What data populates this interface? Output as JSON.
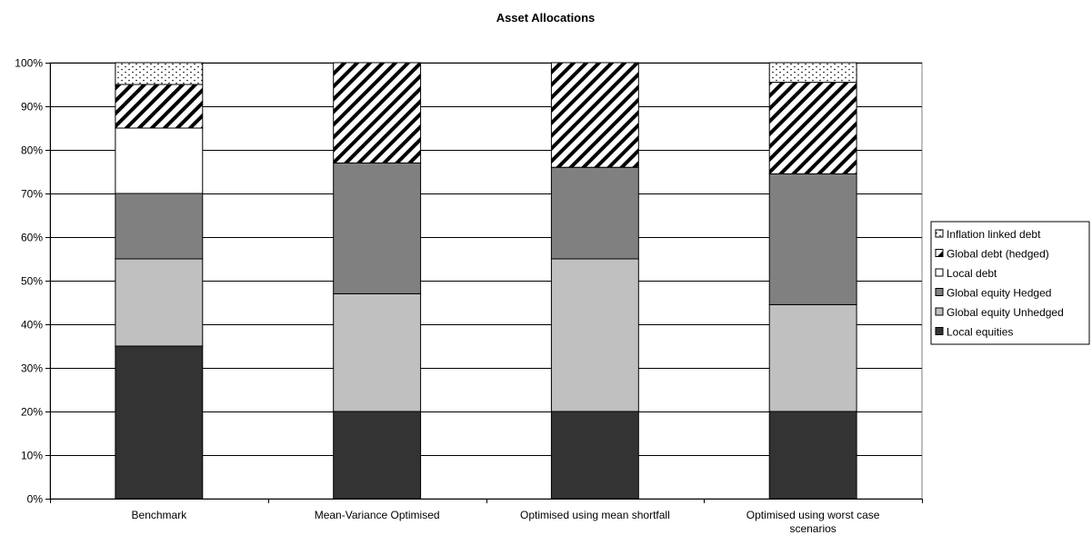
{
  "chart_data": {
    "type": "bar",
    "stacked": true,
    "title": "Asset Allocations",
    "xlabel": "",
    "ylabel": "",
    "ylim": [
      0,
      100
    ],
    "y_ticks": [
      "0%",
      "10%",
      "20%",
      "30%",
      "40%",
      "50%",
      "60%",
      "70%",
      "80%",
      "90%",
      "100%"
    ],
    "grid": "horizontal major gridlines",
    "legend_position": "right",
    "categories": [
      [
        "Benchmark"
      ],
      [
        "Mean-Variance Optimised"
      ],
      [
        "Optimised using mean shortfall"
      ],
      [
        "Optimised using worst case",
        "scenarios"
      ]
    ],
    "series": [
      {
        "name": "Local equities",
        "values": [
          35,
          20,
          20,
          20
        ],
        "fill": "#333333"
      },
      {
        "name": "Global equity Unhedged",
        "values": [
          20,
          27,
          35,
          24.5
        ],
        "fill": "#c0c0c0"
      },
      {
        "name": "Global equity Hedged",
        "values": [
          15,
          30,
          21,
          30
        ],
        "fill": "#808080"
      },
      {
        "name": "Local debt",
        "values": [
          15,
          0,
          0,
          0
        ],
        "fill": "#ffffff"
      },
      {
        "name": "Global debt (hedged)",
        "values": [
          10,
          23,
          24,
          21
        ],
        "fill": "pattern:diagonal-stripes"
      },
      {
        "name": "Inflation linked debt",
        "values": [
          5,
          0,
          0,
          4.5
        ],
        "fill": "pattern:dots"
      }
    ]
  }
}
